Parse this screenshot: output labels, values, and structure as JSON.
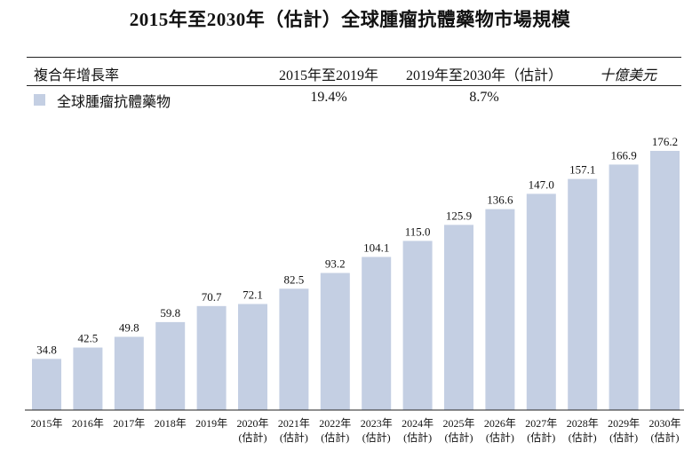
{
  "title": "2015年至2030年（估計）全球腫瘤抗體藥物市場規模",
  "cagr_table": {
    "header_label": "複合年增長率",
    "periods": [
      "2015年至2019年",
      "2019年至2030年（估計）"
    ],
    "unit": "十億美元",
    "legend_label": "全球腫瘤抗體藥物",
    "values": [
      "19.4%",
      "8.7%"
    ]
  },
  "colors": {
    "bar": "#c4cfe3",
    "axis": "#222222"
  },
  "chart_data": {
    "type": "bar",
    "title": "2015年至2030年（估計）全球腫瘤抗體藥物市場規模",
    "categories": [
      "2015年",
      "2016年",
      "2017年",
      "2018年",
      "2019年",
      "2020年",
      "2021年",
      "2022年",
      "2023年",
      "2024年",
      "2025年",
      "2026年",
      "2027年",
      "2028年",
      "2029年",
      "2030年"
    ],
    "category_notes": [
      "",
      "",
      "",
      "",
      "",
      "(估計)",
      "(估計)",
      "(估計)",
      "(估計)",
      "(估計)",
      "(估計)",
      "(估計)",
      "(估計)",
      "(估計)",
      "(估計)",
      "(估計)"
    ],
    "series": [
      {
        "name": "全球腫瘤抗體藥物",
        "values": [
          34.8,
          42.5,
          49.8,
          59.8,
          70.7,
          72.1,
          82.5,
          93.2,
          104.1,
          115.0,
          125.9,
          136.6,
          147.0,
          157.1,
          166.9,
          176.2
        ]
      }
    ],
    "value_labels": [
      "34.8",
      "42.5",
      "49.8",
      "59.8",
      "70.7",
      "72.1",
      "82.5",
      "93.2",
      "104.1",
      "115.0",
      "125.9",
      "136.6",
      "147.0",
      "157.1",
      "166.9",
      "176.2"
    ],
    "ylim": [
      0,
      176.2
    ],
    "grid": false,
    "legend": "top-left"
  }
}
